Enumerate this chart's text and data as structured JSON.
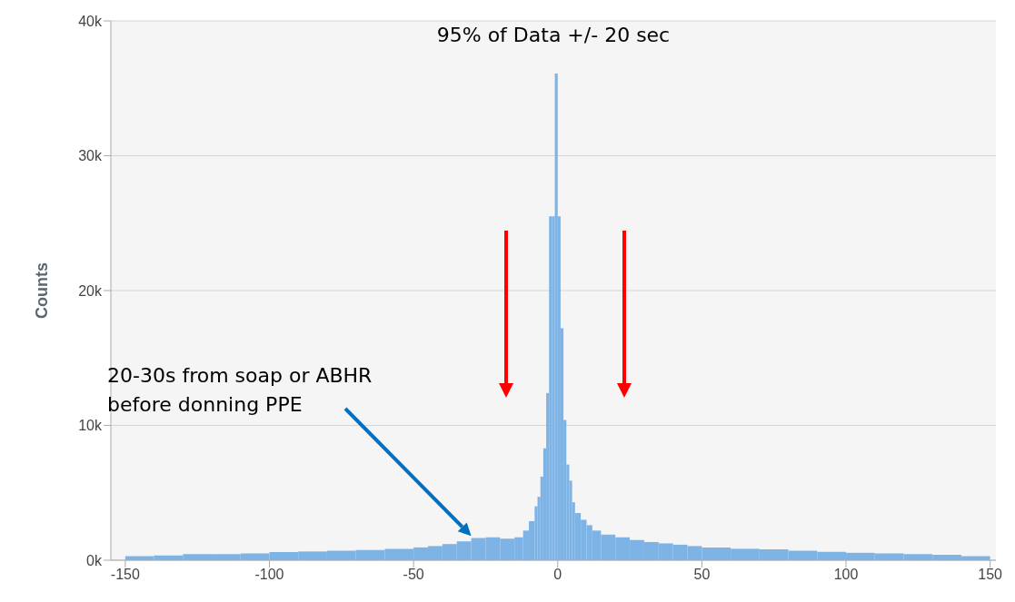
{
  "chart_data": {
    "type": "histogram",
    "ylabel": "Counts",
    "bins": [
      -150,
      -140,
      -130,
      -120,
      -110,
      -100,
      -90,
      -80,
      -70,
      -60,
      -50,
      -45,
      -40,
      -35,
      -30,
      -25,
      -20,
      -15,
      -12,
      -10,
      -8,
      -7,
      -6,
      -5,
      -4,
      -3,
      -2,
      -1,
      0,
      1,
      2,
      3,
      4,
      5,
      6,
      8,
      10,
      12,
      15,
      20,
      25,
      30,
      35,
      40,
      45,
      50,
      60,
      70,
      80,
      90,
      100,
      110,
      120,
      130,
      140,
      150
    ],
    "values": [
      300,
      350,
      450,
      450,
      500,
      600,
      650,
      700,
      750,
      850,
      950,
      1050,
      1200,
      1400,
      1650,
      1700,
      1600,
      1700,
      2200,
      2900,
      4000,
      4700,
      6200,
      8300,
      12400,
      25500,
      25500,
      36100,
      25500,
      17200,
      10400,
      7100,
      5900,
      4300,
      3500,
      3000,
      2600,
      2200,
      1900,
      1700,
      1500,
      1350,
      1250,
      1150,
      1050,
      950,
      850,
      800,
      700,
      620,
      550,
      500,
      450,
      400,
      300
    ],
    "color": "#7eb3e6",
    "xlim": [
      -155,
      152
    ],
    "xticks": [
      -150,
      -100,
      -50,
      0,
      50,
      100,
      150
    ],
    "ylim": [
      0,
      40000
    ],
    "yticks": [
      {
        "value": 0,
        "label": "0k"
      },
      {
        "value": 10000,
        "label": "10k"
      },
      {
        "value": 20000,
        "label": "20k"
      },
      {
        "value": 30000,
        "label": "30k"
      },
      {
        "value": 40000,
        "label": "40k"
      }
    ],
    "grid": "y",
    "annotations": [
      "95% of Data +/- 20 sec",
      "20-30s from soap or ABHR before donning PPE"
    ]
  }
}
